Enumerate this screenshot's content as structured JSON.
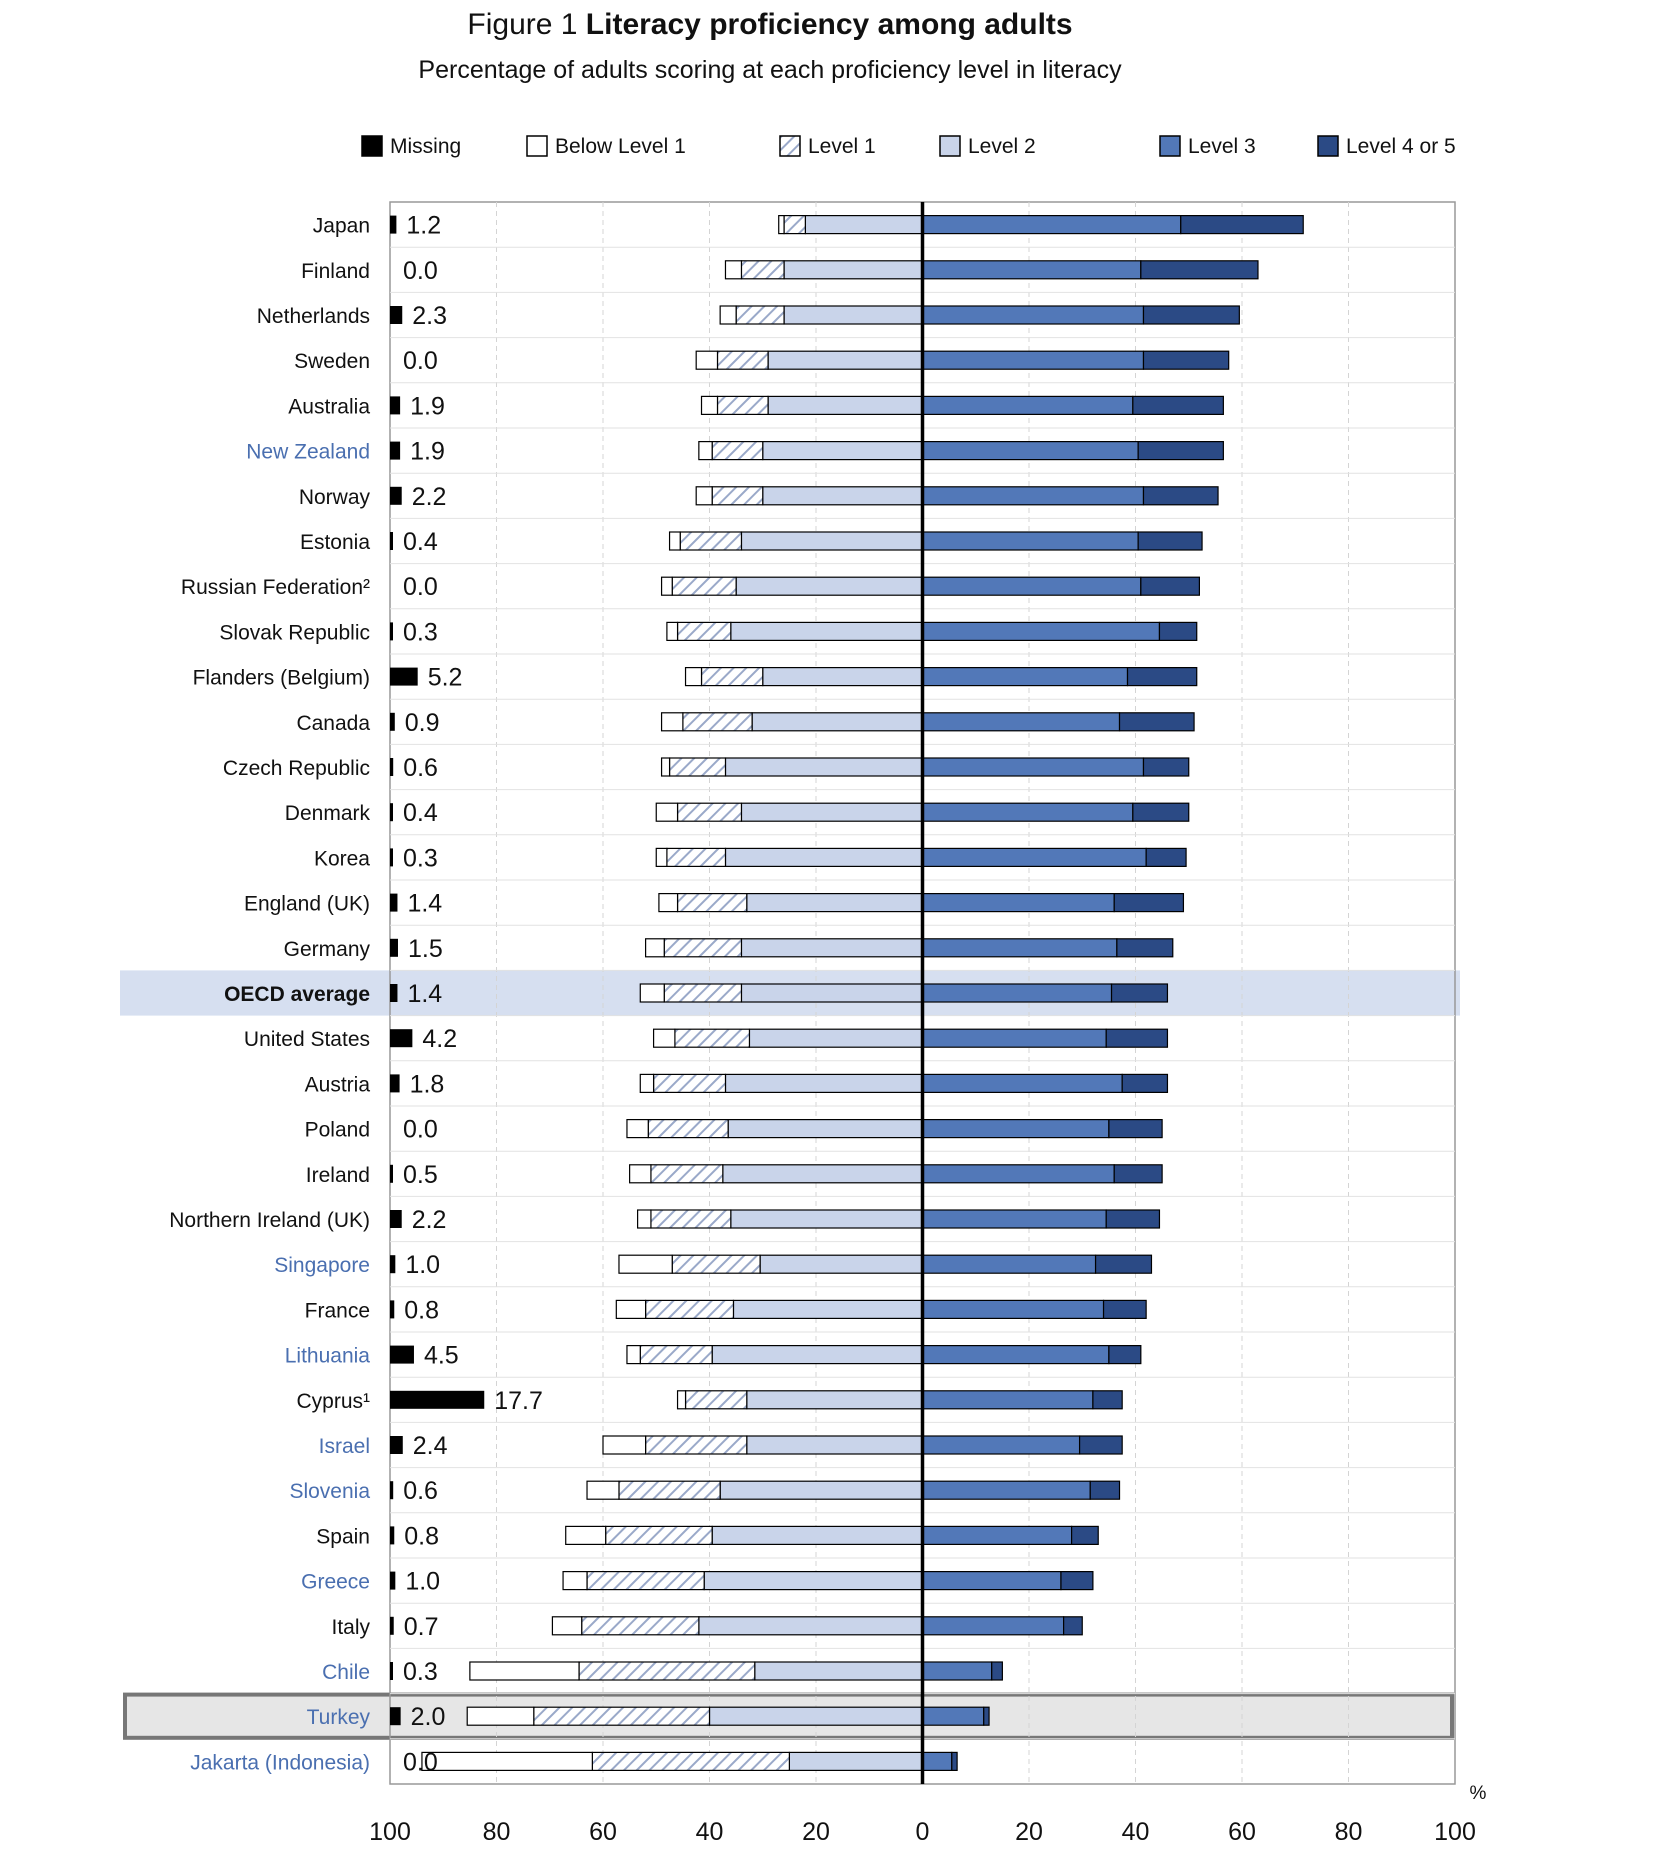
{
  "figure": {
    "title_prefix": "Figure 1",
    "title_bold": "Literacy proficiency among adults",
    "subtitle": "Percentage of adults scoring at each proficiency level in literacy"
  },
  "colors": {
    "missing": "#000000",
    "below_level_1": "#ffffff",
    "level_1": "#ffffff",
    "level_1_hatch": "#9aa9c9",
    "level_2": "#c9d4ea",
    "level_3": "#5278b8",
    "level_4_5": "#2b4a85",
    "highlight_country_label": "#4a6fb0",
    "oecd_band": "#d6dff0",
    "turkey_band": "#e6e6e6"
  },
  "chart_data": {
    "type": "bar",
    "orientation": "horizontal-diverging",
    "xlabel": "%",
    "xlim": [
      -100,
      100
    ],
    "x_ticks": [
      "100",
      "80",
      "60",
      "40",
      "20",
      "0",
      "20",
      "40",
      "60",
      "80",
      "100"
    ],
    "grid": true,
    "legend_position": "top",
    "legend": [
      "Missing",
      "Below Level 1",
      "Level 1",
      "Level 2",
      "Level 3",
      "Level 4 or 5"
    ],
    "countries": [
      {
        "name": "Japan",
        "missing": "1.2",
        "below1": 1.0,
        "level1": 4.0,
        "level2": 22.0,
        "level3": 48.5,
        "level45": 23.0,
        "highlight": false
      },
      {
        "name": "Finland",
        "missing": "0.0",
        "below1": 3.0,
        "level1": 8.0,
        "level2": 26.0,
        "level3": 41.0,
        "level45": 22.0,
        "highlight": false
      },
      {
        "name": "Netherlands",
        "missing": "2.3",
        "below1": 3.0,
        "level1": 9.0,
        "level2": 26.0,
        "level3": 41.5,
        "level45": 18.0,
        "highlight": false
      },
      {
        "name": "Sweden",
        "missing": "0.0",
        "below1": 4.0,
        "level1": 9.5,
        "level2": 29.0,
        "level3": 41.5,
        "level45": 16.0,
        "highlight": false
      },
      {
        "name": "Australia",
        "missing": "1.9",
        "below1": 3.0,
        "level1": 9.5,
        "level2": 29.0,
        "level3": 39.5,
        "level45": 17.0,
        "highlight": false
      },
      {
        "name": "New Zealand",
        "missing": "1.9",
        "below1": 2.5,
        "level1": 9.5,
        "level2": 30.0,
        "level3": 40.5,
        "level45": 16.0,
        "highlight": true
      },
      {
        "name": "Norway",
        "missing": "2.2",
        "below1": 3.0,
        "level1": 9.5,
        "level2": 30.0,
        "level3": 41.5,
        "level45": 14.0,
        "highlight": false
      },
      {
        "name": "Estonia",
        "missing": "0.4",
        "below1": 2.0,
        "level1": 11.5,
        "level2": 34.0,
        "level3": 40.5,
        "level45": 12.0,
        "highlight": false
      },
      {
        "name": "Russian Federation²",
        "missing": "0.0",
        "below1": 2.0,
        "level1": 12.0,
        "level2": 35.0,
        "level3": 41.0,
        "level45": 11.0,
        "highlight": false
      },
      {
        "name": "Slovak Republic",
        "missing": "0.3",
        "below1": 2.0,
        "level1": 10.0,
        "level2": 36.0,
        "level3": 44.5,
        "level45": 7.0,
        "highlight": false
      },
      {
        "name": "Flanders (Belgium)",
        "missing": "5.2",
        "below1": 3.0,
        "level1": 11.5,
        "level2": 30.0,
        "level3": 38.5,
        "level45": 13.0,
        "highlight": false
      },
      {
        "name": "Canada",
        "missing": "0.9",
        "below1": 4.0,
        "level1": 13.0,
        "level2": 32.0,
        "level3": 37.0,
        "level45": 14.0,
        "highlight": false
      },
      {
        "name": "Czech Republic",
        "missing": "0.6",
        "below1": 1.5,
        "level1": 10.5,
        "level2": 37.0,
        "level3": 41.5,
        "level45": 8.5,
        "highlight": false
      },
      {
        "name": "Denmark",
        "missing": "0.4",
        "below1": 4.0,
        "level1": 12.0,
        "level2": 34.0,
        "level3": 39.5,
        "level45": 10.5,
        "highlight": false
      },
      {
        "name": "Korea",
        "missing": "0.3",
        "below1": 2.0,
        "level1": 11.0,
        "level2": 37.0,
        "level3": 42.0,
        "level45": 7.5,
        "highlight": false
      },
      {
        "name": "England (UK)",
        "missing": "1.4",
        "below1": 3.5,
        "level1": 13.0,
        "level2": 33.0,
        "level3": 36.0,
        "level45": 13.0,
        "highlight": false
      },
      {
        "name": "Germany",
        "missing": "1.5",
        "below1": 3.5,
        "level1": 14.5,
        "level2": 34.0,
        "level3": 36.5,
        "level45": 10.5,
        "highlight": false
      },
      {
        "name": "OECD average",
        "missing": "1.4",
        "below1": 4.5,
        "level1": 14.5,
        "level2": 34.0,
        "level3": 35.5,
        "level45": 10.5,
        "highlight": false,
        "oecd": true
      },
      {
        "name": "United States",
        "missing": "4.2",
        "below1": 4.0,
        "level1": 14.0,
        "level2": 32.5,
        "level3": 34.5,
        "level45": 11.5,
        "highlight": false
      },
      {
        "name": "Austria",
        "missing": "1.8",
        "below1": 2.5,
        "level1": 13.5,
        "level2": 37.0,
        "level3": 37.5,
        "level45": 8.5,
        "highlight": false
      },
      {
        "name": "Poland",
        "missing": "0.0",
        "below1": 4.0,
        "level1": 15.0,
        "level2": 36.5,
        "level3": 35.0,
        "level45": 10.0,
        "highlight": false
      },
      {
        "name": "Ireland",
        "missing": "0.5",
        "below1": 4.0,
        "level1": 13.5,
        "level2": 37.5,
        "level3": 36.0,
        "level45": 9.0,
        "highlight": false
      },
      {
        "name": "Northern Ireland (UK)",
        "missing": "2.2",
        "below1": 2.5,
        "level1": 15.0,
        "level2": 36.0,
        "level3": 34.5,
        "level45": 10.0,
        "highlight": false
      },
      {
        "name": "Singapore",
        "missing": "1.0",
        "below1": 10.0,
        "level1": 16.5,
        "level2": 30.5,
        "level3": 32.5,
        "level45": 10.5,
        "highlight": true
      },
      {
        "name": "France",
        "missing": "0.8",
        "below1": 5.5,
        "level1": 16.5,
        "level2": 35.5,
        "level3": 34.0,
        "level45": 8.0,
        "highlight": false
      },
      {
        "name": "Lithuania",
        "missing": "4.5",
        "below1": 2.5,
        "level1": 13.5,
        "level2": 39.5,
        "level3": 35.0,
        "level45": 6.0,
        "highlight": true
      },
      {
        "name": "Cyprus¹",
        "missing": "17.7",
        "below1": 1.5,
        "level1": 11.5,
        "level2": 33.0,
        "level3": 32.0,
        "level45": 5.5,
        "highlight": false
      },
      {
        "name": "Israel",
        "missing": "2.4",
        "below1": 8.0,
        "level1": 19.0,
        "level2": 33.0,
        "level3": 29.5,
        "level45": 8.0,
        "highlight": true
      },
      {
        "name": "Slovenia",
        "missing": "0.6",
        "below1": 6.0,
        "level1": 19.0,
        "level2": 38.0,
        "level3": 31.5,
        "level45": 5.5,
        "highlight": true
      },
      {
        "name": "Spain",
        "missing": "0.8",
        "below1": 7.5,
        "level1": 20.0,
        "level2": 39.5,
        "level3": 28.0,
        "level45": 5.0,
        "highlight": false
      },
      {
        "name": "Greece",
        "missing": "1.0",
        "below1": 4.5,
        "level1": 22.0,
        "level2": 41.0,
        "level3": 26.0,
        "level45": 6.0,
        "highlight": true
      },
      {
        "name": "Italy",
        "missing": "0.7",
        "below1": 5.5,
        "level1": 22.0,
        "level2": 42.0,
        "level3": 26.5,
        "level45": 3.5,
        "highlight": false
      },
      {
        "name": "Chile",
        "missing": "0.3",
        "below1": 20.5,
        "level1": 33.0,
        "level2": 31.5,
        "level3": 13.0,
        "level45": 2.0,
        "highlight": true
      },
      {
        "name": "Turkey",
        "missing": "2.0",
        "below1": 12.5,
        "level1": 33.0,
        "level2": 40.0,
        "level3": 11.5,
        "level45": 1.0,
        "highlight": true,
        "boxed": true
      },
      {
        "name": "Jakarta (Indonesia)",
        "missing": "0.0",
        "below1": 32.0,
        "level1": 37.0,
        "level2": 25.0,
        "level3": 5.5,
        "level45": 1.0,
        "highlight": true
      }
    ]
  }
}
